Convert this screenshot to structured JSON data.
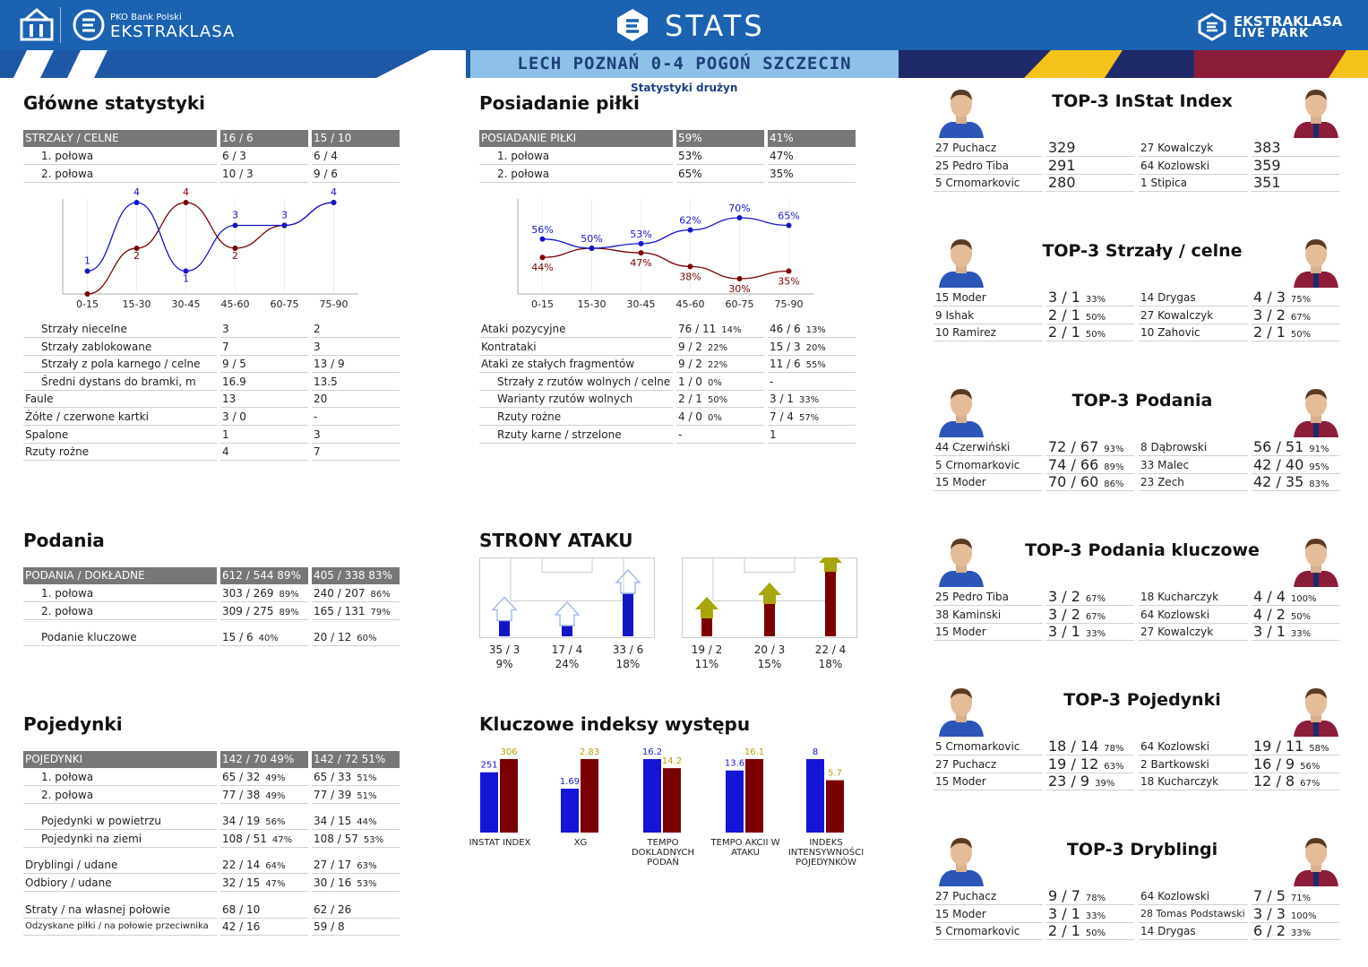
{
  "header": {
    "sponsor": "PKO Bank Polski",
    "league": "EKSTRAKLASA",
    "stats": "STATS",
    "right_logo_1": "EKSTRAKLASA",
    "right_logo_2": "LIVE PARK",
    "match": "LECH POZNAŃ 0-4 POGOŃ SZCZECIN",
    "subtitle": "Statystyki drużyn"
  },
  "colors": {
    "home": "#1515c8",
    "away": "#7a0000",
    "grey": "#777777",
    "header_blue": "#1b62b0"
  },
  "main_stats": {
    "title": "Główne statystyki",
    "header": [
      "STRZAŁY / CELNE",
      "16 / 6",
      "15 / 10"
    ],
    "halves": [
      [
        "1. połowa",
        "6 / 3",
        "6 / 4"
      ],
      [
        "2. połowa",
        "10 / 3",
        "9 / 6"
      ]
    ],
    "rows": [
      [
        "Strzały niecelne",
        "3",
        "2"
      ],
      [
        "Strzały zablokowane",
        "7",
        "3"
      ],
      [
        "Strzały z pola karnego / celne",
        "9 / 5",
        "13 / 9"
      ],
      [
        "Średni dystans do bramki, m",
        "16.9",
        "13.5"
      ],
      [
        "Faule",
        "13",
        "20"
      ],
      [
        "Żółte / czerwone kartki",
        "3 / 0",
        "-"
      ],
      [
        "Spalone",
        "1",
        "3"
      ],
      [
        "Rzuty rożne",
        "4",
        "7"
      ]
    ]
  },
  "possession": {
    "title": "Posiadanie piłki",
    "header": [
      "POSIADANIE PIŁKI",
      "59%",
      "41%"
    ],
    "halves": [
      [
        "1. połowa",
        "53%",
        "47%"
      ],
      [
        "2. połowa",
        "65%",
        "35%"
      ]
    ],
    "rows": [
      [
        "Ataki pozycyjne",
        "76 / 11",
        "14%",
        "46 / 6",
        "13%"
      ],
      [
        "Kontrataki",
        "9 / 2",
        "22%",
        "15 / 3",
        "20%"
      ],
      [
        "Ataki ze stałych fragmentów",
        "9 / 2",
        "22%",
        "11 / 6",
        "55%"
      ],
      [
        "Strzały z rzutów wolnych / celne",
        "1 / 0",
        "0%",
        "-",
        ""
      ],
      [
        "Warianty rzutów wolnych",
        "2 / 1",
        "50%",
        "3 / 1",
        "33%"
      ],
      [
        "Rzuty rożne",
        "4 / 0",
        "0%",
        "7 / 4",
        "57%"
      ],
      [
        "Rzuty karne / strzelone",
        "-",
        "",
        "1",
        ""
      ]
    ]
  },
  "chart_data": [
    {
      "type": "line",
      "categories": [
        "0-15",
        "15-30",
        "30-45",
        "45-60",
        "60-75",
        "75-90"
      ],
      "series": [
        {
          "values": [
            1,
            4,
            1,
            3,
            3,
            4
          ]
        },
        {
          "values": [
            0,
            2,
            4,
            2,
            3,
            4
          ]
        }
      ],
      "data_labels_home": [
        "1",
        "4",
        "1",
        "3",
        "3",
        "4"
      ],
      "data_labels_away": [
        "2",
        "4",
        "2"
      ],
      "ylim": [
        0,
        4
      ]
    },
    {
      "type": "line",
      "categories": [
        "0-15",
        "15-30",
        "30-45",
        "45-60",
        "60-75",
        "75-90"
      ],
      "series": [
        {
          "values": [
            56,
            50,
            53,
            62,
            70,
            65
          ]
        },
        {
          "values": [
            44,
            50,
            47,
            38,
            30,
            35
          ]
        }
      ],
      "data_labels_home": [
        "56%",
        "50%",
        "53%",
        "62%",
        "70%",
        "65%"
      ],
      "data_labels_away": [
        "44%",
        "47%",
        "38%",
        "30%",
        "35%"
      ],
      "ylim": [
        20,
        80
      ]
    },
    {
      "type": "bar",
      "categories": [
        "INSTAT INDEX",
        "XG",
        "TEMPO DOKLADNYCH PODAŃ",
        "TEMPO AKCII W ATAKU",
        "INDEKS INTENSYWNOŚCI POJEDYNKÓW"
      ],
      "series": [
        {
          "values": [
            251,
            1.69,
            16.2,
            13.6,
            8
          ]
        },
        {
          "values": [
            306,
            2.83,
            14.2,
            16.1,
            5.7
          ]
        }
      ],
      "labels_home": [
        "251",
        "1.69",
        "16.2",
        "13.6",
        "8"
      ],
      "labels_away": [
        "306",
        "2.83",
        "14.2",
        "16.1",
        "5.7"
      ]
    }
  ],
  "passes": {
    "title": "Podania",
    "header": [
      "PODANIA / DOKŁADNE",
      "612 / 544",
      "89%",
      "405 / 338",
      "83%"
    ],
    "rows": [
      [
        "1. połowa",
        "303 / 269",
        "89%",
        "240 / 207",
        "86%"
      ],
      [
        "2. połowa",
        "309 / 275",
        "89%",
        "165 / 131",
        "79%"
      ]
    ],
    "key": [
      "Podanie kluczowe",
      "15 / 6",
      "40%",
      "20 / 12",
      "60%"
    ]
  },
  "attack": {
    "title": "STRONY ATAKU",
    "home": [
      [
        "35 / 3",
        "9%"
      ],
      [
        "17 / 4",
        "24%"
      ],
      [
        "33 / 6",
        "18%"
      ]
    ],
    "away": [
      [
        "19 / 2",
        "11%"
      ],
      [
        "20 / 3",
        "15%"
      ],
      [
        "22 / 4",
        "18%"
      ]
    ],
    "home_share": [
      0.22,
      0.15,
      0.6
    ],
    "away_share": [
      0.25,
      0.45,
      0.9
    ]
  },
  "key_idx": {
    "title": "Kluczowe indeksy występu"
  },
  "duels": {
    "title": "Pojedynki",
    "header": [
      "POJEDYNKI",
      "142 / 70",
      "49%",
      "142 / 72",
      "51%"
    ],
    "rows": [
      [
        "1. połowa",
        "65 / 32",
        "49%",
        "65 / 33",
        "51%"
      ],
      [
        "2. połowa",
        "77 / 38",
        "49%",
        "77 / 39",
        "51%"
      ],
      [
        "Pojedynki w powietrzu",
        "34 / 19",
        "56%",
        "34 / 15",
        "44%"
      ],
      [
        "Pojedynki na ziemi",
        "108 / 51",
        "47%",
        "108 / 57",
        "53%"
      ],
      [
        "Dryblingi / udane",
        "22 / 14",
        "64%",
        "27 / 17",
        "63%"
      ],
      [
        "Odbiory / udane",
        "32 / 15",
        "47%",
        "30 / 16",
        "53%"
      ],
      [
        "Straty / na własnej połowie",
        "68 / 10",
        "",
        "62 / 26",
        ""
      ],
      [
        "Odzyskane piłki / na połowie przeciwnika",
        "42 / 16",
        "",
        "59 / 8",
        ""
      ]
    ]
  },
  "top3": [
    {
      "title": "TOP-3 InStat Index",
      "rows": [
        [
          "27 Puchacz",
          "329",
          "",
          "27 Kowalczyk",
          "383",
          ""
        ],
        [
          "25 Pedro Tiba",
          "291",
          "",
          "64 Kozlowski",
          "359",
          ""
        ],
        [
          "5   Crnomarkovic",
          "280",
          "",
          "1   Stipica",
          "351",
          ""
        ]
      ]
    },
    {
      "title": "TOP-3 Strzały / celne",
      "rows": [
        [
          "15 Moder",
          "3 / 1",
          "33%",
          "14 Drygas",
          "4 / 3",
          "75%"
        ],
        [
          "9   Ishak",
          "2 / 1",
          "50%",
          "27 Kowalczyk",
          "3 / 2",
          "67%"
        ],
        [
          "10 Ramirez",
          "2 / 1",
          "50%",
          "10 Zahovic",
          "2 / 1",
          "50%"
        ]
      ]
    },
    {
      "title": "TOP-3 Podania",
      "rows": [
        [
          "44 Czerwiński",
          "72 / 67",
          "93%",
          "8   Dąbrowski",
          "56 / 51",
          "91%"
        ],
        [
          "5   Crnomarkovic",
          "74 / 66",
          "89%",
          "33 Malec",
          "42 / 40",
          "95%"
        ],
        [
          "15 Moder",
          "70 / 60",
          "86%",
          "23 Zech",
          "42 / 35",
          "83%"
        ]
      ]
    },
    {
      "title": "TOP-3 Podania kluczowe",
      "rows": [
        [
          "25 Pedro Tiba",
          "3 / 2",
          "67%",
          "18 Kucharczyk",
          "4 / 4",
          "100%"
        ],
        [
          "38 Kaminski",
          "3 / 2",
          "67%",
          "64 Kozlowski",
          "4 / 2",
          "50%"
        ],
        [
          "15 Moder",
          "3 / 1",
          "33%",
          "27 Kowalczyk",
          "3 / 1",
          "33%"
        ]
      ]
    },
    {
      "title": "TOP-3 Pojedynki",
      "rows": [
        [
          "5   Crnomarkovic",
          "18 / 14",
          "78%",
          "64 Kozlowski",
          "19 / 11",
          "58%"
        ],
        [
          "27 Puchacz",
          "19 / 12",
          "63%",
          "2   Bartkowski",
          "16 / 9",
          "56%"
        ],
        [
          "15 Moder",
          "23 / 9",
          "39%",
          "18 Kucharczyk",
          "12 / 8",
          "67%"
        ]
      ]
    },
    {
      "title": "TOP-3 Dryblingi",
      "rows": [
        [
          "27 Puchacz",
          "9 / 7",
          "78%",
          "64 Kozlowski",
          "7 / 5",
          "71%"
        ],
        [
          "15 Moder",
          "3 / 1",
          "33%",
          "28 Tomas Podstawski",
          "3 / 3",
          "100%"
        ],
        [
          "5   Crnomarkovic",
          "2 / 1",
          "50%",
          "14 Drygas",
          "6 / 2",
          "33%"
        ]
      ]
    }
  ]
}
